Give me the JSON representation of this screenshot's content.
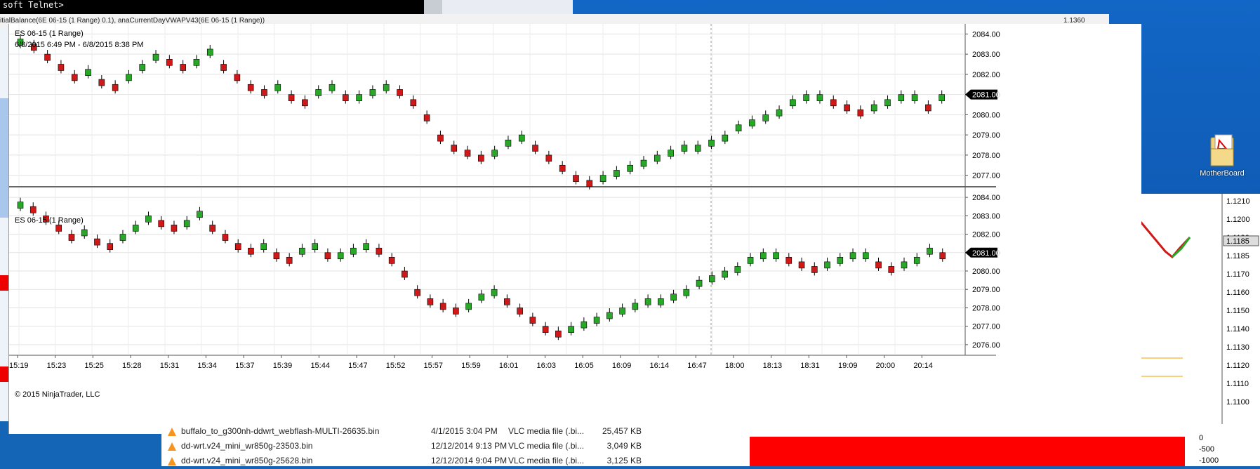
{
  "telnet": {
    "title": "soft Telnet>",
    "subline": "ft Telnet>"
  },
  "behind_title": "itialBalance(6E 06-15 (1 Range) 0.1), anaCurrentDayVWAPV43(6E 06-15 (1 Range))",
  "behind_price": "1.1360",
  "top_panel": {
    "label": "ES 06-15 (1 Range)",
    "date_range": "6/8/2015 6:49 PM - 6/8/2015 8:38 PM",
    "price_badge": "2081.00"
  },
  "bottom_panel": {
    "label": "ES 06-15 (1 Range)",
    "copyright": "© 2015 NinjaTrader, LLC",
    "price_badge": "2081.00"
  },
  "chart_data": [
    {
      "type": "candlestick",
      "title": "ES 06-15 (1 Range)",
      "y_ticks": [
        "2084.00",
        "2083.00",
        "2082.00",
        "2081.00",
        "2080.00",
        "2079.00",
        "2078.00",
        "2077.00"
      ],
      "ylim": [
        2076.5,
        2084.5
      ],
      "series": [
        {
          "name": "ES 06-15 (1 Range)",
          "values": [
            2083.75,
            2083.5,
            2083,
            2082.5,
            2082,
            2082.25,
            2081.75,
            2081.5,
            2082,
            2082.5,
            2083,
            2082.75,
            2082.5,
            2082.75,
            2083.25,
            2082.5,
            2082,
            2081.5,
            2081.25,
            2081.5,
            2081,
            2080.75,
            2081.25,
            2081.5,
            2081,
            2081,
            2081.25,
            2081.5,
            2081.25,
            2080.75,
            2080,
            2079,
            2078.5,
            2078.25,
            2078,
            2078.25,
            2078.75,
            2079,
            2078.5,
            2078,
            2077.5,
            2077,
            2076.75,
            2077,
            2077.25,
            2077.5,
            2077.75,
            2078,
            2078.25,
            2078.5,
            2078.5,
            2078.75,
            2079,
            2079.5,
            2079.75,
            2080,
            2080.25,
            2080.75,
            2081,
            2081,
            2080.75,
            2080.5,
            2080.25,
            2080.5,
            2080.75,
            2081,
            2081,
            2080.5,
            2081
          ]
        }
      ],
      "price_badge": "2081.00"
    },
    {
      "type": "candlestick",
      "title": "ES 06-15 (1 Range)",
      "y_ticks": [
        "2084.00",
        "2083.00",
        "2082.00",
        "2081.00",
        "2080.00",
        "2079.00",
        "2078.00",
        "2077.00",
        "2076.00"
      ],
      "ylim": [
        2075.5,
        2084.5
      ],
      "x_ticks": [
        "15:19",
        "15:23",
        "15:25",
        "15:28",
        "15:31",
        "15:34",
        "15:37",
        "15:39",
        "15:44",
        "15:47",
        "15:52",
        "15:57",
        "15:59",
        "16:01",
        "16:03",
        "16:05",
        "16:09",
        "16:14",
        "16:47",
        "18:00",
        "18:13",
        "18:31",
        "19:09",
        "20:00",
        "20:14"
      ],
      "series": [
        {
          "name": "ES 06-15 (1 Range)",
          "values": [
            2083.75,
            2083.5,
            2083,
            2082.5,
            2082,
            2082.25,
            2081.75,
            2081.5,
            2082,
            2082.5,
            2083,
            2082.75,
            2082.5,
            2082.75,
            2083.25,
            2082.5,
            2082,
            2081.5,
            2081.25,
            2081.5,
            2081,
            2080.75,
            2081.25,
            2081.5,
            2081,
            2081,
            2081.25,
            2081.5,
            2081.25,
            2080.75,
            2080,
            2079,
            2078.5,
            2078.25,
            2078,
            2078.25,
            2078.75,
            2079,
            2078.5,
            2078,
            2077.5,
            2077,
            2076.75,
            2077,
            2077.25,
            2077.5,
            2077.75,
            2078,
            2078.25,
            2078.5,
            2078.5,
            2078.75,
            2079,
            2079.5,
            2079.75,
            2080,
            2080.25,
            2080.75,
            2081,
            2081,
            2080.75,
            2080.5,
            2080.25,
            2080.5,
            2080.75,
            2081,
            2081,
            2080.5,
            2080.25,
            2080.5,
            2080.75,
            2081.25,
            2081
          ]
        }
      ],
      "price_badge": "2081.00"
    }
  ],
  "right_axis": {
    "ticks": [
      "1.1210",
      "1.1200",
      "1.1190",
      "1.1185",
      "1.1170",
      "1.1160",
      "1.1150",
      "1.1140",
      "1.1130",
      "1.1120",
      "1.1110",
      "1.1100"
    ],
    "badge": "1.1185"
  },
  "desktop_icon": {
    "label": "MotherBoard",
    "icon": "pdf-folder-icon"
  },
  "file_list": [
    {
      "name": "buffalo_to_g300nh-ddwrt_webflash-MULTI-26635.bin",
      "date": "4/1/2015 3:04 PM",
      "type": "VLC media file (.bi...",
      "size": "25,457 KB"
    },
    {
      "name": "dd-wrt.v24_mini_wr850g-23503.bin",
      "date": "12/12/2014 9:13 PM",
      "type": "VLC media file (.bi...",
      "size": "3,049 KB"
    },
    {
      "name": "dd-wrt.v24_mini_wr850g-25628.bin",
      "date": "12/12/2014 9:04 PM",
      "type": "VLC media file (.bi...",
      "size": "3,125 KB"
    }
  ],
  "red_panel": {
    "ticks": [
      "0",
      "-500",
      "-1000"
    ]
  },
  "colors": {
    "up": "#27a827",
    "down": "#d01818",
    "badge": "#000000",
    "red_fill": "#ff0000"
  }
}
